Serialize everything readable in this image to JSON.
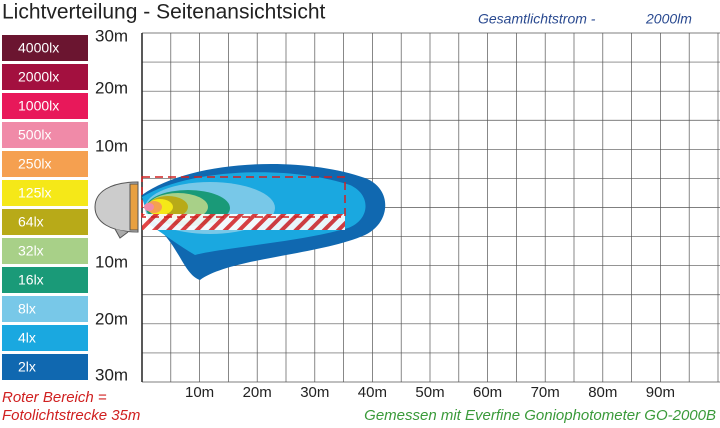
{
  "header": {
    "title": "Lichtverteilung - Seitenansichtsicht",
    "flux_label": "Gesamtlichtstrom  -",
    "flux_value": "2000lm"
  },
  "legend": {
    "items": [
      {
        "label": "4000lx",
        "color": "#6b1530"
      },
      {
        "label": "2000lx",
        "color": "#a3103f"
      },
      {
        "label": "1000lx",
        "color": "#e8185a"
      },
      {
        "label": "500lx",
        "color": "#f08aa8"
      },
      {
        "label": "250lx",
        "color": "#f5a050"
      },
      {
        "label": "125lx",
        "color": "#f5e818"
      },
      {
        "label": "64lx",
        "color": "#b8aa18"
      },
      {
        "label": "32lx",
        "color": "#a8d088"
      },
      {
        "label": "16lx",
        "color": "#1a9a78"
      },
      {
        "label": "8lx",
        "color": "#78c8e8"
      },
      {
        "label": "4lx",
        "color": "#1aa8e0"
      },
      {
        "label": "2lx",
        "color": "#1068b0"
      }
    ]
  },
  "axes": {
    "y_labels": [
      "30m",
      "20m",
      "10m",
      "10m",
      "20m",
      "30m"
    ],
    "x_labels": [
      "10m",
      "20m",
      "30m",
      "40m",
      "50m",
      "60m",
      "70m",
      "80m",
      "90m"
    ]
  },
  "notes": {
    "red": [
      "Roter Bereich =",
      "Fotolichtstrecke 35m"
    ],
    "green": "Gemessen mit Everfine Goniophotometer GO-2000B"
  }
}
